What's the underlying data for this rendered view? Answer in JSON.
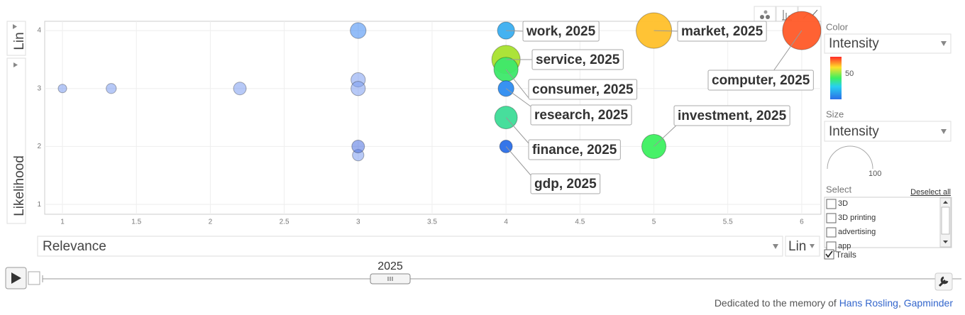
{
  "chart_data": {
    "type": "bubble",
    "x_label": "Relevance",
    "y_label": "Likelihood",
    "x_scale": "Lin",
    "y_scale": "Lin",
    "time": "2025",
    "xlim": [
      0.88,
      6.13
    ],
    "ylim": [
      0.83,
      4.16
    ],
    "xticks": [
      1,
      1.5,
      2,
      2.5,
      3,
      3.5,
      4,
      4.5,
      5,
      5.5,
      6
    ],
    "yticks": [
      1,
      2,
      3,
      4
    ],
    "grid": true,
    "points": [
      {
        "x": 1,
        "y": 3,
        "size": 5,
        "color": "#7b9cf0"
      },
      {
        "x": 1.33,
        "y": 3,
        "size": 7,
        "color": "#7b9cf0"
      },
      {
        "x": 2.2,
        "y": 3,
        "size": 11,
        "color": "#7b9cf0"
      },
      {
        "x": 3,
        "y": 3.15,
        "size": 14,
        "color": "#7b9cf0"
      },
      {
        "x": 3,
        "y": 3,
        "size": 14,
        "color": "#7b9cf0"
      },
      {
        "x": 3,
        "y": 1.85,
        "size": 9,
        "color": "#7b9cf0"
      },
      {
        "x": 3,
        "y": 2,
        "size": 11,
        "color": "#4a6fe0"
      },
      {
        "x": 3,
        "y": 4,
        "size": 17,
        "color": "#3b86f2"
      },
      {
        "x": 4,
        "y": 4,
        "size": 20,
        "color": "#3aaef0",
        "label": "work, 2025"
      },
      {
        "x": 5,
        "y": 4,
        "size": 86,
        "color": "#ffc02a",
        "label": "market, 2025"
      },
      {
        "x": 6,
        "y": 4,
        "size": 100,
        "color": "#ff5a28",
        "label": "computer, 2025"
      },
      {
        "x": 4,
        "y": 3.5,
        "size": 55,
        "color": "#a8e22e",
        "label": "service, 2025"
      },
      {
        "x": 4,
        "y": 3.33,
        "size": 40,
        "color": "#3de86a",
        "label": "consumer, 2025"
      },
      {
        "x": 4,
        "y": 3,
        "size": 17,
        "color": "#2d8cf0",
        "label": "research, 2025"
      },
      {
        "x": 5,
        "y": 2,
        "size": 40,
        "color": "#3df060",
        "label": "investment, 2025"
      },
      {
        "x": 4,
        "y": 2.5,
        "size": 35,
        "color": "#3ddc97",
        "label": "finance, 2025"
      },
      {
        "x": 4,
        "y": 2,
        "size": 11,
        "color": "#2b6fe8",
        "label": "gdp, 2025"
      }
    ]
  },
  "ui": {
    "color_title": "Color",
    "color_by": "Intensity",
    "color_tick": 50,
    "size_title": "Size",
    "size_by": "Intensity",
    "size_tick": 100,
    "select_title": "Select",
    "deselect": "Deselect all",
    "items": [
      "3D",
      "3D printing",
      "advertising",
      "app"
    ],
    "trails": "Trails",
    "footer": [
      "Dedicated to the memory of ",
      "Hans Rosling",
      ", ",
      "Gapminder"
    ]
  }
}
